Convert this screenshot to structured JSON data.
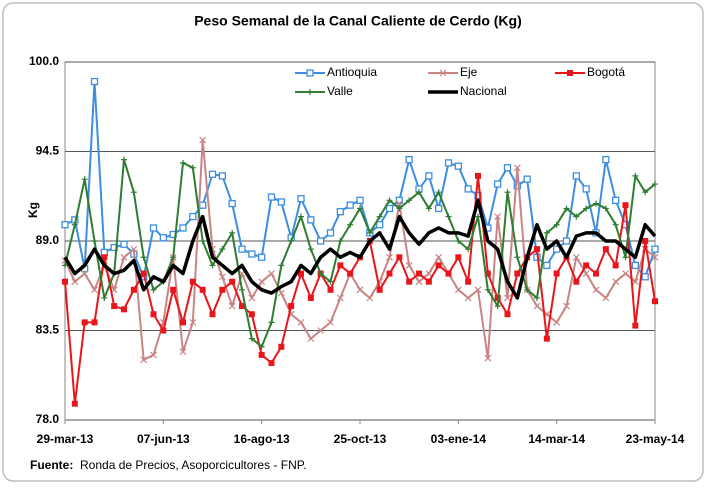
{
  "chart_data": {
    "type": "line",
    "title": "Peso Semanal de la Canal Caliente de Cerdo (Kg)",
    "y_label": "Kg",
    "source_label": "Fuente:",
    "source_text": "Ronda de Precios, Asoporcicultores  - FNP.",
    "categories": [
      "29-mar-13",
      null,
      null,
      null,
      null,
      null,
      null,
      null,
      null,
      null,
      "07-jun-13",
      null,
      null,
      null,
      null,
      null,
      null,
      null,
      null,
      null,
      "16-ago-13",
      null,
      null,
      null,
      null,
      null,
      null,
      null,
      null,
      null,
      "25-oct-13",
      null,
      null,
      null,
      null,
      null,
      null,
      null,
      null,
      null,
      "03-ene-14",
      null,
      null,
      null,
      null,
      null,
      null,
      null,
      null,
      null,
      "14-mar-14",
      null,
      null,
      null,
      null,
      null,
      null,
      null,
      null,
      null,
      "23-may-14"
    ],
    "ylim": [
      78,
      100
    ],
    "yticks": [
      {
        "value": 78,
        "label": "78.0"
      },
      83.5,
      {
        "value": 89,
        "label": "89.0"
      },
      94.5,
      {
        "value": 100,
        "label": "100.0"
      }
    ],
    "grid": true,
    "legend": "top",
    "series": [
      {
        "name": "Antioquia",
        "color": "#3d8ee0",
        "marker": "square-open",
        "values": [
          90.0,
          90.3,
          87.3,
          98.8,
          88.3,
          88.6,
          88.8,
          88.2,
          86.8,
          89.8,
          89.2,
          89.4,
          89.8,
          90.5,
          91.2,
          93.1,
          93.0,
          91.3,
          88.5,
          88.2,
          88.0,
          91.7,
          91.4,
          89.2,
          91.6,
          90.3,
          89.0,
          89.5,
          90.8,
          91.2,
          91.5,
          89.5,
          90.0,
          91.0,
          91.5,
          94.0,
          92.2,
          93.0,
          91.0,
          93.8,
          93.6,
          92.2,
          91.8,
          89.8,
          92.5,
          93.5,
          92.4,
          92.8,
          88.0,
          87.5,
          88.5,
          89.0,
          93.0,
          92.2,
          89.5,
          94.0,
          91.5,
          90.0,
          87.5,
          86.8,
          88.5
        ]
      },
      {
        "name": "Eje",
        "color": "#c98585",
        "marker": "x",
        "values": [
          87.8,
          86.5,
          87.0,
          86.0,
          87.5,
          86.0,
          88.0,
          88.5,
          81.7,
          82.0,
          84.0,
          88.0,
          82.2,
          84.0,
          95.2,
          88.5,
          86.8,
          85.0,
          87.0,
          85.5,
          86.5,
          87.0,
          85.8,
          84.5,
          84.0,
          83.0,
          83.5,
          84.0,
          85.5,
          87.0,
          86.0,
          85.5,
          86.5,
          88.0,
          91.3,
          87.5,
          86.5,
          87.0,
          88.0,
          87.0,
          86.0,
          85.5,
          86.0,
          81.8,
          90.5,
          85.5,
          93.5,
          86.0,
          85.0,
          84.5,
          84.0,
          85.0,
          88.0,
          87.0,
          86.0,
          85.5,
          86.5,
          87.0,
          86.5,
          88.5,
          88.0
        ]
      },
      {
        "name": "Bogotá",
        "color": "#e8161b",
        "marker": "square",
        "values": [
          86.5,
          79.0,
          84.0,
          84.0,
          88.0,
          85.0,
          84.8,
          86.0,
          87.0,
          84.5,
          83.5,
          86.0,
          84.0,
          86.5,
          86.0,
          84.5,
          86.0,
          86.5,
          85.0,
          84.5,
          82.0,
          81.5,
          82.5,
          85.0,
          87.0,
          85.5,
          87.0,
          86.0,
          87.5,
          87.0,
          88.0,
          89.0,
          86.0,
          87.0,
          88.0,
          86.5,
          87.0,
          86.5,
          87.5,
          87.0,
          88.0,
          86.5,
          93.0,
          87.0,
          85.5,
          84.5,
          87.0,
          88.0,
          88.5,
          83.0,
          87.0,
          88.0,
          86.5,
          87.5,
          87.0,
          88.5,
          87.5,
          91.2,
          83.8,
          89.0,
          85.3
        ]
      },
      {
        "name": "Valle",
        "color": "#2e7d32",
        "marker": "plus",
        "values": [
          87.5,
          90.0,
          92.8,
          89.0,
          85.5,
          87.0,
          94.0,
          92.0,
          88.0,
          86.0,
          86.5,
          88.0,
          93.8,
          93.5,
          89.0,
          87.5,
          88.5,
          89.5,
          86.0,
          83.0,
          82.5,
          84.0,
          87.5,
          89.0,
          90.5,
          88.5,
          87.0,
          86.5,
          89.0,
          90.0,
          91.0,
          89.5,
          90.5,
          91.5,
          91.0,
          91.5,
          92.0,
          91.0,
          92.0,
          90.5,
          89.0,
          88.5,
          90.5,
          86.0,
          85.0,
          92.0,
          88.0,
          86.0,
          85.5,
          89.5,
          90.0,
          91.0,
          90.5,
          91.0,
          91.3,
          91.0,
          90.0,
          88.0,
          93.0,
          92.0,
          92.5
        ]
      },
      {
        "name": "Nacional",
        "color": "#000000",
        "marker": "none",
        "values": [
          88.0,
          87.0,
          87.5,
          88.5,
          87.5,
          87.0,
          87.2,
          87.8,
          86.0,
          86.8,
          86.5,
          87.5,
          87.0,
          89.0,
          90.5,
          88.0,
          87.5,
          87.0,
          87.5,
          86.5,
          86.0,
          85.8,
          86.2,
          86.5,
          87.5,
          87.0,
          88.0,
          88.5,
          88.0,
          88.3,
          88.0,
          89.0,
          89.5,
          88.5,
          90.5,
          89.5,
          88.8,
          89.5,
          89.8,
          89.5,
          89.5,
          89.3,
          91.5,
          89.0,
          88.5,
          86.5,
          85.5,
          88.0,
          90.0,
          88.5,
          89.0,
          88.0,
          89.3,
          89.5,
          89.5,
          89.0,
          89.0,
          88.5,
          88.0,
          90.0,
          89.3
        ]
      }
    ]
  }
}
